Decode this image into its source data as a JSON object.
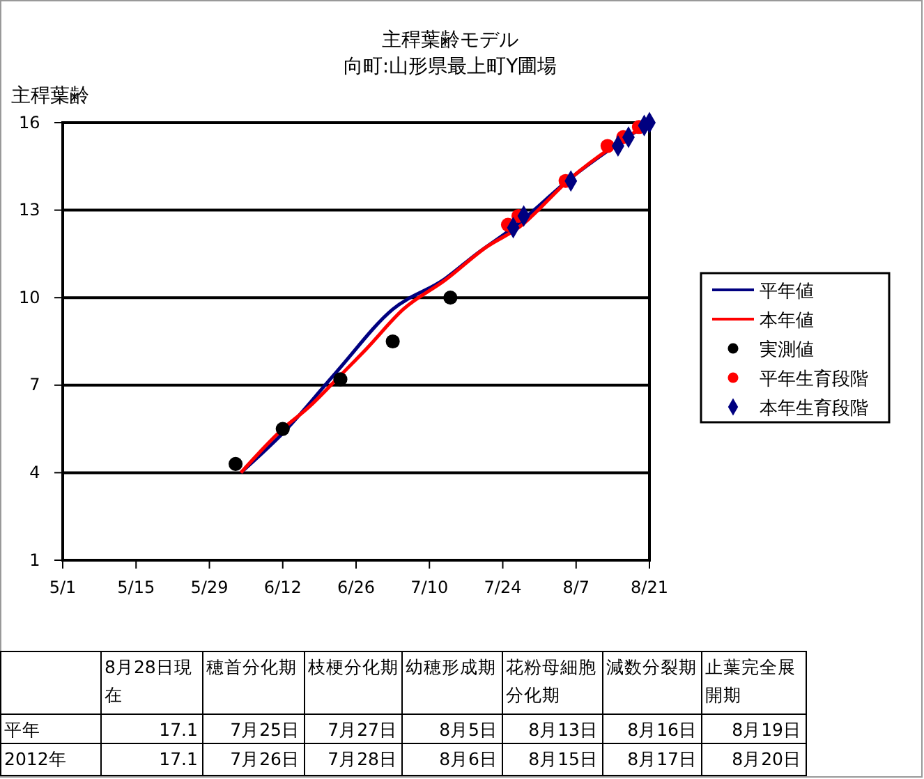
{
  "chart_data": {
    "type": "line",
    "title": "主稈葉齢モデル",
    "subtitle": "向町:山形県最上町Y圃場",
    "ylabel": "主稈葉齢",
    "xlim": [
      "--05-01",
      "--08-21"
    ],
    "xticks": [
      {
        "value": "--05-01",
        "label": "5/1"
      },
      {
        "value": "--05-15",
        "label": "5/15"
      },
      {
        "value": "--05-29",
        "label": "5/29"
      },
      {
        "value": "--06-12",
        "label": "6/12"
      },
      {
        "value": "--06-26",
        "label": "6/26"
      },
      {
        "value": "--07-10",
        "label": "7/10"
      },
      {
        "value": "--07-24",
        "label": "7/24"
      },
      {
        "value": "--08-07",
        "label": "8/7"
      },
      {
        "value": "--08-21",
        "label": "8/21"
      }
    ],
    "ylim": [
      1,
      16
    ],
    "yticks": [
      1,
      4,
      7,
      10,
      13,
      16
    ],
    "grid": "y",
    "legend": "right",
    "series": [
      {
        "name": "平年値",
        "color": "#000080",
        "x": [
          "--06-04",
          "--06-12",
          "--06-22",
          "--07-03",
          "--07-13",
          "--07-19",
          "--07-26",
          "--08-06",
          "--08-21"
        ],
        "values": [
          4.0,
          5.35,
          7.4,
          9.6,
          10.65,
          11.5,
          12.4,
          14.1,
          16.0
        ]
      },
      {
        "name": "本年値",
        "color": "#ff0000",
        "x": [
          "--06-04",
          "--06-12",
          "--06-17",
          "--06-22",
          "--06-28",
          "--07-05",
          "--07-13",
          "--07-21",
          "--07-27",
          "--08-06",
          "--08-21"
        ],
        "values": [
          4.0,
          5.5,
          6.25,
          7.15,
          8.25,
          9.6,
          10.6,
          11.75,
          12.4,
          14.1,
          16.0
        ]
      },
      {
        "name": "実測値",
        "type": "scatter",
        "marker": "circle",
        "color": "#000000",
        "x": [
          "--06-03",
          "--06-12",
          "--06-23",
          "--07-03",
          "--07-14"
        ],
        "values": [
          4.3,
          5.5,
          7.2,
          8.5,
          10.0
        ]
      },
      {
        "name": "平年生育段階",
        "type": "scatter",
        "marker": "circle",
        "color": "#ff0000",
        "x": [
          "--07-25",
          "--07-27",
          "--08-05",
          "--08-13",
          "--08-16",
          "--08-19"
        ],
        "values": [
          12.5,
          12.8,
          14.0,
          15.2,
          15.5,
          15.85
        ]
      },
      {
        "name": "本年生育段階",
        "type": "scatter",
        "marker": "diamond",
        "color": "#000080",
        "x": [
          "--07-26",
          "--07-28",
          "--08-06",
          "--08-15",
          "--08-17",
          "--08-20",
          "--08-21"
        ],
        "values": [
          12.4,
          12.8,
          14.0,
          15.2,
          15.5,
          15.9,
          16.0
        ]
      }
    ],
    "annotations": [
      "8月28日現在",
      "穂首分化期",
      "枝梗分化期",
      "幼穂形成期",
      "花粉母細胞分化期",
      "減数分裂期",
      "止葉完全展開期",
      "平年",
      "17.1",
      "7月25日",
      "7月27日",
      "8月5日",
      "8月13日",
      "8月16日",
      "8月19日",
      "2012年",
      "17.1",
      "7月26日",
      "7月28日",
      "8月6日",
      "8月15日",
      "8月17日",
      "8月20日"
    ]
  }
}
